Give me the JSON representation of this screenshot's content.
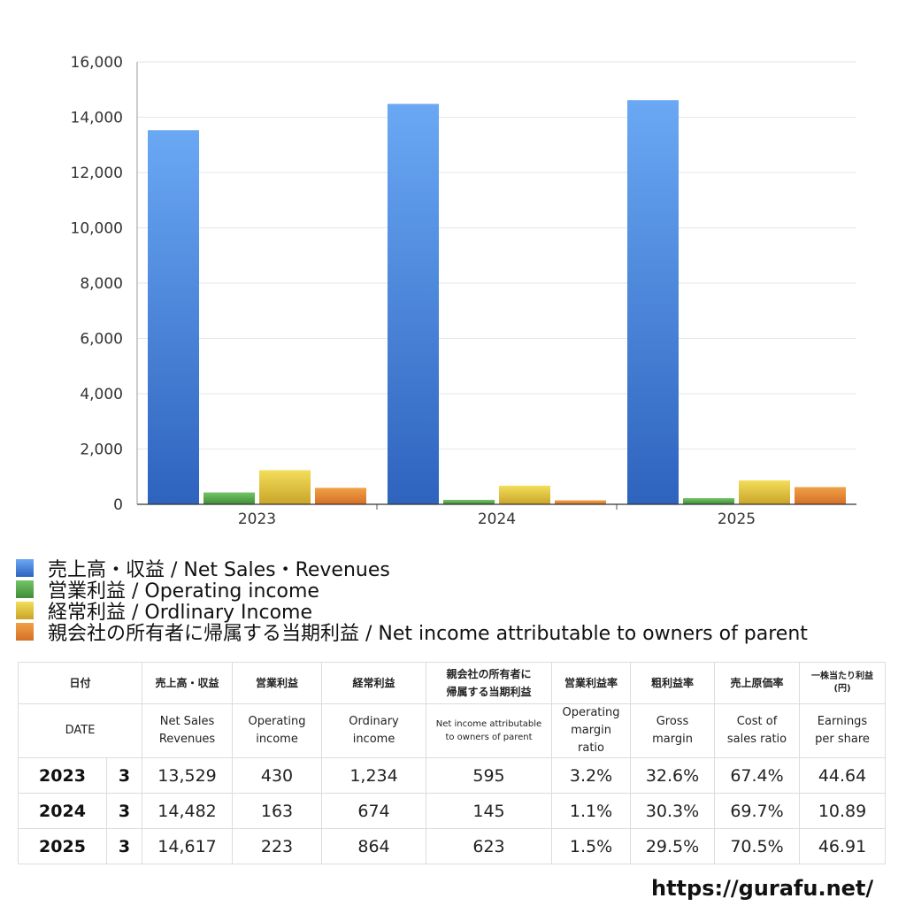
{
  "chart_data": {
    "type": "bar",
    "categories": [
      "2023",
      "2024",
      "2025"
    ],
    "series": [
      {
        "name": "売上高・収益 / Net Sales・Revenues",
        "values": [
          13529,
          14482,
          14617
        ],
        "color_top": "#6aa8f4",
        "color_bottom": "#2e63be"
      },
      {
        "name": "営業利益 / Operating income",
        "values": [
          430,
          163,
          223
        ],
        "color_top": "#74c469",
        "color_bottom": "#3f8d36"
      },
      {
        "name": "経常利益 / Ordlinary Income",
        "values": [
          1234,
          674,
          864
        ],
        "color_top": "#f3de5a",
        "color_bottom": "#c9a42a"
      },
      {
        "name": "親会社の所有者に帰属する当期利益 / Net income attributable to owners of parent",
        "values": [
          595,
          145,
          623
        ],
        "color_top": "#f0a146",
        "color_bottom": "#d56f27"
      }
    ],
    "ylim": [
      0,
      16000
    ],
    "yticks": [
      "0",
      "2,000",
      "4,000",
      "6,000",
      "8,000",
      "10,000",
      "12,000",
      "14,000",
      "16,000"
    ],
    "ytick_values": [
      0,
      2000,
      4000,
      6000,
      8000,
      10000,
      12000,
      14000,
      16000
    ],
    "grid": true,
    "legend_position": "bottom-left"
  },
  "legend_colors": [
    "#4a86dc",
    "#55a94b",
    "#e5c43e",
    "#e5843a"
  ],
  "table": {
    "headers_jp": {
      "date": "日付",
      "sales": "売上高・収益",
      "operating": "営業利益",
      "ordinary": "経常利益",
      "net_line1": "親会社の所有者に",
      "net_line2": "帰属する当期利益",
      "op_margin": "営業利益率",
      "gross": "粗利益率",
      "cost": "売上原価率",
      "eps_line1": "一株当たり利益",
      "eps_line2": "(円)"
    },
    "headers_en": {
      "date": "DATE",
      "sales_line1": "Net Sales",
      "sales_line2": "Revenues",
      "operating_line1": "Operating",
      "operating_line2": "income",
      "ordinary_line1": "Ordinary",
      "ordinary_line2": "income",
      "net_line1": "Net income attributable",
      "net_line2": "to owners of parent",
      "op_margin_line1": "Operating",
      "op_margin_line2": "margin",
      "op_margin_line3": "ratio",
      "gross_line1": "Gross",
      "gross_line2": "margin",
      "cost_line1": "Cost of",
      "cost_line2": "sales ratio",
      "eps_line1": "Earnings",
      "eps_line2": "per share"
    },
    "rows": [
      {
        "year": "2023",
        "month": "3",
        "sales": "13,529",
        "operating": "430",
        "ordinary": "1,234",
        "net": "595",
        "op_margin": "3.2%",
        "gross": "32.6%",
        "cost": "67.4%",
        "eps": "44.64"
      },
      {
        "year": "2024",
        "month": "3",
        "sales": "14,482",
        "operating": "163",
        "ordinary": "674",
        "net": "145",
        "op_margin": "1.1%",
        "gross": "30.3%",
        "cost": "69.7%",
        "eps": "10.89"
      },
      {
        "year": "2025",
        "month": "3",
        "sales": "14,617",
        "operating": "223",
        "ordinary": "864",
        "net": "623",
        "op_margin": "1.5%",
        "gross": "29.5%",
        "cost": "70.5%",
        "eps": "46.91"
      }
    ]
  },
  "footer": {
    "url": "https://gurafu.net/"
  }
}
